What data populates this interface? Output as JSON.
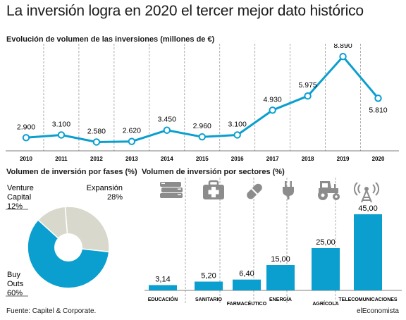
{
  "header": {
    "title": "La inversión logra en 2020 el tercer mejor dato histórico",
    "brand": "elEconomista",
    "source": "Fuente: Capitel & Corporate."
  },
  "colors": {
    "accent": "#0a9fcf",
    "pie_light": "#d8d8cc",
    "icon_gray": "#8c8c8c",
    "grid": "#999999"
  },
  "chart_data": [
    {
      "type": "line",
      "title": "Evolución de volumen de las inversiones (millones de €)",
      "x": [
        "2010",
        "2011",
        "2012",
        "2013",
        "2014",
        "2015",
        "2016",
        "2017",
        "2018",
        "2019",
        "2020"
      ],
      "y": [
        2900,
        3100,
        2580,
        2620,
        3450,
        2960,
        3100,
        4930,
        5975,
        8890,
        5810
      ],
      "data_labels": [
        "2.900",
        "3.100",
        "2.580",
        "2.620",
        "3.450",
        "2.960",
        "3.100",
        "4.930",
        "5.975",
        "8.890",
        "5.810"
      ],
      "grid": "vertical dashed"
    },
    {
      "type": "pie",
      "title": "Volumen de inversión por fases (%)",
      "slices": [
        {
          "name": "Expansión",
          "value": 28,
          "label": "28%"
        },
        {
          "name": "Buy Outs",
          "value": 60,
          "label": "60%"
        },
        {
          "name": "Venture Capital",
          "value": 12,
          "label": "12%"
        }
      ],
      "labels": {
        "venture_line1": "Venture",
        "venture_line2": "Capital",
        "venture_value": "12%",
        "expansion": "Expansión",
        "expansion_value": "28%",
        "buy_line1": "Buy",
        "buy_line2": "Outs",
        "buy_value": "60%"
      }
    },
    {
      "type": "bar",
      "title": "Volumen de inversión por sectores (%)",
      "categories": [
        "EDUCACIÓN",
        "SANITARIO",
        "FARMACÉUTICO",
        "ENERGÍA",
        "AGRÍCOLA",
        "TELECOMUNICACIONES"
      ],
      "values": [
        3.14,
        5.2,
        6.4,
        15.0,
        25.0,
        45.0
      ],
      "data_labels": [
        "3,14",
        "5,20",
        "6,40",
        "15,00",
        "25,00",
        "45,00"
      ],
      "icons": [
        "books-icon",
        "first-aid-kit-icon",
        "pill-icon",
        "plug-icon",
        "tractor-icon",
        "antenna-icon"
      ]
    }
  ]
}
